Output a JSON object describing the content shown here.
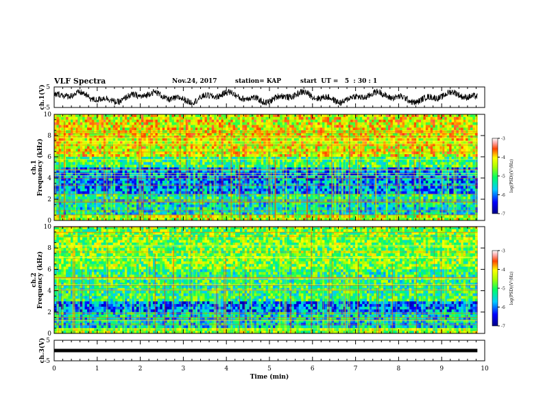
{
  "header": {
    "title": "VLF Spectra",
    "date": "Nov.24, 2017",
    "station": "station= KAP",
    "start": "start  UT =   5  : 30 : 1"
  },
  "chart_data": [
    {
      "type": "line",
      "id": "ch1-waveform",
      "ylabel": "ch.1(V)",
      "ylim": [
        -5,
        5
      ],
      "yticks": [
        "5",
        "-5"
      ],
      "xlim": [
        0,
        10
      ],
      "x_extent": 9.83,
      "color": "#000000"
    },
    {
      "type": "heatmap",
      "id": "ch1-spectrogram",
      "ylabel": "ch.1\nFrequency  (kHz)",
      "xlim": [
        0,
        10
      ],
      "ylim": [
        0,
        10
      ],
      "yticks": [
        "0",
        "2",
        "4",
        "6",
        "8",
        "10"
      ],
      "x_extent": 9.83,
      "colorbar": {
        "label": "log(PSD)(V²/Hz)",
        "range": [
          -7,
          -3
        ],
        "ticks": [
          "-3",
          "-4",
          "-5",
          "-6",
          "-7"
        ]
      },
      "bands_khz": [
        {
          "from": 6.0,
          "to": 10.0,
          "level": -4.2
        },
        {
          "from": 5.0,
          "to": 6.0,
          "level": -5.0
        },
        {
          "from": 2.5,
          "to": 5.0,
          "level": -5.9
        },
        {
          "from": 2.0,
          "to": 2.5,
          "level": -5.2
        },
        {
          "from": 0.5,
          "to": 2.0,
          "level": -5.4
        },
        {
          "from": 0.0,
          "to": 0.5,
          "level": -4.4
        }
      ]
    },
    {
      "type": "heatmap",
      "id": "ch2-spectrogram",
      "ylabel": "ch.2\nFrequency  (kHz)",
      "xlim": [
        0,
        10
      ],
      "ylim": [
        0,
        10
      ],
      "yticks": [
        "0",
        "2",
        "4",
        "6",
        "8",
        "10"
      ],
      "x_extent": 9.83,
      "colorbar": {
        "label": "log(PSD)(V²/Hz)",
        "range": [
          -7,
          -3
        ],
        "ticks": [
          "-3",
          "-4",
          "-5",
          "-6",
          "-7"
        ]
      },
      "bands_khz": [
        {
          "from": 6.0,
          "to": 10.0,
          "level": -4.7
        },
        {
          "from": 3.0,
          "to": 6.0,
          "level": -5.1
        },
        {
          "from": 2.0,
          "to": 3.0,
          "level": -6.0
        },
        {
          "from": 0.5,
          "to": 2.0,
          "level": -5.5
        },
        {
          "from": 0.0,
          "to": 0.5,
          "level": -4.6
        }
      ]
    },
    {
      "type": "line",
      "id": "ch3-waveform",
      "ylabel": "ch.3(V)",
      "ylim": [
        -5,
        5
      ],
      "yticks": [
        "5",
        "-5"
      ],
      "xlim": [
        0,
        10
      ],
      "x_extent": 9.83,
      "constant_value": 0,
      "color": "#000000"
    }
  ],
  "xaxis": {
    "label": "Time  (min)",
    "ticks": [
      "0",
      "1",
      "2",
      "3",
      "4",
      "5",
      "6",
      "7",
      "8",
      "9",
      "10"
    ]
  }
}
